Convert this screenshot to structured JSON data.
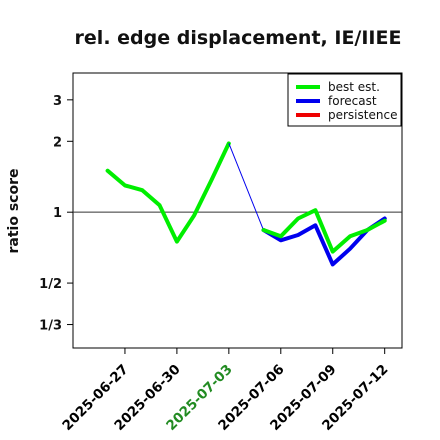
{
  "chart_data": {
    "type": "line",
    "title": "rel. edge displacement, IE/IIEE",
    "ylabel": "ratio score",
    "xlabel": "",
    "y_scale": "log",
    "ylim": [
      0.265,
      3.9
    ],
    "xlim": [
      "2025-06-24",
      "2025-07-13"
    ],
    "y_ticks": [
      {
        "value": 3,
        "label": "3"
      },
      {
        "value": 2,
        "label": "2"
      },
      {
        "value": 1,
        "label": "1"
      },
      {
        "value": 0.5,
        "label": "1/2"
      },
      {
        "value": 0.3333,
        "label": "1/3"
      }
    ],
    "x_ticks": [
      {
        "date": "2025-06-27",
        "label": "2025-06-27",
        "color": "#000000"
      },
      {
        "date": "2025-06-30",
        "label": "2025-06-30",
        "color": "#000000"
      },
      {
        "date": "2025-07-03",
        "label": "2025-07-03",
        "color": "#228B22"
      },
      {
        "date": "2025-07-06",
        "label": "2025-07-06",
        "color": "#000000"
      },
      {
        "date": "2025-07-09",
        "label": "2025-07-09",
        "color": "#000000"
      },
      {
        "date": "2025-07-12",
        "label": "2025-07-12",
        "color": "#000000"
      }
    ],
    "reference_line": 1,
    "legend_position": "top-right",
    "series": [
      {
        "name": "best est.",
        "color": "#00ee00",
        "points": [
          {
            "x": "2025-06-26",
            "y": 1.5
          },
          {
            "x": "2025-06-27",
            "y": 1.3
          },
          {
            "x": "2025-06-28",
            "y": 1.24
          },
          {
            "x": "2025-06-29",
            "y": 1.07
          },
          {
            "x": "2025-06-30",
            "y": 0.75
          },
          {
            "x": "2025-07-01",
            "y": 0.97
          },
          {
            "x": "2025-07-02",
            "y": 1.37
          },
          {
            "x": "2025-07-03",
            "y": 1.96
          }
        ]
      },
      {
        "name": "forecast",
        "color": "#0000ee",
        "points": [
          {
            "x": "2025-07-03",
            "y": 1.96
          },
          {
            "x": "2025-07-05",
            "y": 0.84
          },
          {
            "x": "2025-07-06",
            "y": 0.76
          },
          {
            "x": "2025-07-07",
            "y": 0.8
          },
          {
            "x": "2025-07-08",
            "y": 0.88
          },
          {
            "x": "2025-07-09",
            "y": 0.6
          },
          {
            "x": "2025-07-10",
            "y": 0.7
          },
          {
            "x": "2025-07-11",
            "y": 0.84
          },
          {
            "x": "2025-07-12",
            "y": 0.94
          }
        ]
      },
      {
        "name": "best est.",
        "color": "#00ee00",
        "points": [
          {
            "x": "2025-07-05",
            "y": 0.84
          },
          {
            "x": "2025-07-06",
            "y": 0.79
          },
          {
            "x": "2025-07-07",
            "y": 0.94
          },
          {
            "x": "2025-07-08",
            "y": 1.02
          },
          {
            "x": "2025-07-09",
            "y": 0.68
          },
          {
            "x": "2025-07-10",
            "y": 0.79
          },
          {
            "x": "2025-07-11",
            "y": 0.84
          },
          {
            "x": "2025-07-12",
            "y": 0.92
          }
        ]
      }
    ],
    "legend": [
      {
        "label": "best est.",
        "color": "#00ee00"
      },
      {
        "label": "forecast",
        "color": "#0000ee"
      },
      {
        "label": "persistence",
        "color": "#ee0000"
      }
    ]
  }
}
